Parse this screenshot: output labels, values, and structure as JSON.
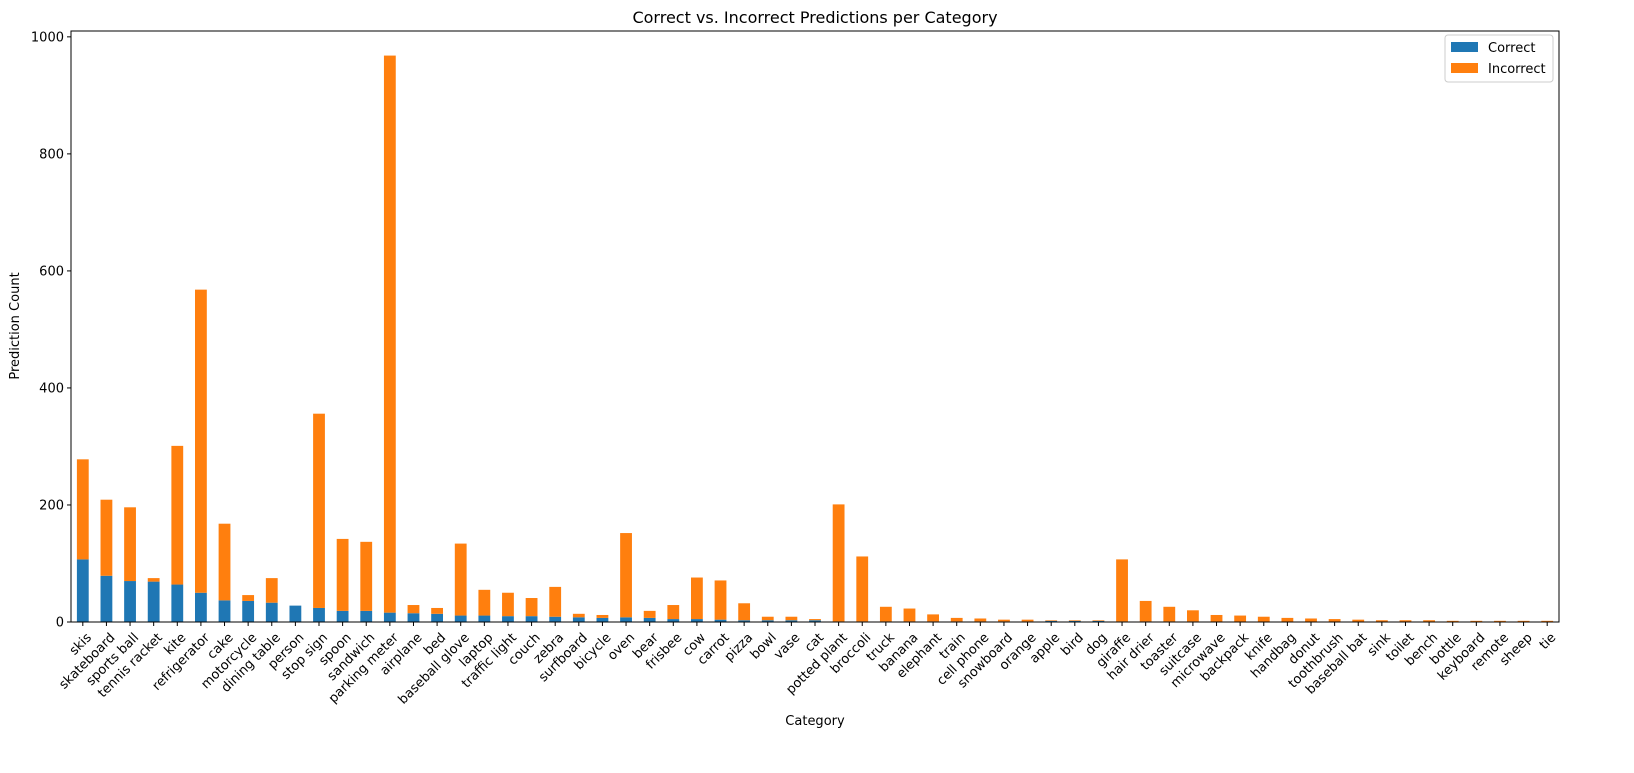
{
  "chart_data": {
    "type": "bar",
    "stacked": true,
    "title": "Correct vs. Incorrect Predictions per Category",
    "xlabel": "Category",
    "ylabel": "Prediction Count",
    "ylim": [
      0,
      1010
    ],
    "yticks": [
      0,
      200,
      400,
      600,
      800,
      1000
    ],
    "grid": false,
    "legend_position": "top-right",
    "categories": [
      "skis",
      "skateboard",
      "sports ball",
      "tennis racket",
      "kite",
      "refrigerator",
      "cake",
      "motorcycle",
      "dining table",
      "person",
      "stop sign",
      "spoon",
      "sandwich",
      "parking meter",
      "airplane",
      "bed",
      "baseball glove",
      "laptop",
      "traffic light",
      "couch",
      "zebra",
      "surfboard",
      "bicycle",
      "oven",
      "bear",
      "frisbee",
      "cow",
      "carrot",
      "pizza",
      "bowl",
      "vase",
      "cat",
      "potted plant",
      "broccoli",
      "truck",
      "banana",
      "elephant",
      "train",
      "cell phone",
      "snowboard",
      "orange",
      "apple",
      "bird",
      "dog",
      "giraffe",
      "hair drier",
      "toaster",
      "suitcase",
      "microwave",
      "backpack",
      "knife",
      "handbag",
      "donut",
      "toothbrush",
      "baseball bat",
      "sink",
      "toilet",
      "bench",
      "bottle",
      "keyboard",
      "remote",
      "sheep",
      "tie"
    ],
    "series": [
      {
        "name": "Correct",
        "color": "#1f77b4",
        "values": [
          107,
          79,
          70,
          69,
          64,
          50,
          37,
          36,
          33,
          28,
          24,
          19,
          19,
          16,
          15,
          14,
          11,
          11,
          10,
          10,
          9,
          8,
          7,
          8,
          7,
          5,
          5,
          4,
          3,
          3,
          3,
          3,
          1,
          1,
          1,
          1,
          1,
          1,
          1,
          1,
          1,
          2,
          2,
          2,
          1,
          1,
          1,
          1,
          0,
          0,
          0,
          0,
          0,
          0,
          0,
          0,
          0,
          0,
          0,
          0,
          0,
          0,
          0
        ]
      },
      {
        "name": "Incorrect",
        "color": "#ff7f0e",
        "values": [
          171,
          130,
          126,
          6,
          237,
          518,
          131,
          10,
          42,
          0,
          332,
          123,
          118,
          952,
          14,
          10,
          123,
          44,
          40,
          31,
          51,
          6,
          5,
          144,
          12,
          24,
          71,
          67,
          29,
          6,
          6,
          2,
          200,
          111,
          25,
          22,
          12,
          6,
          5,
          3,
          3,
          1,
          1,
          1,
          106,
          35,
          25,
          19,
          12,
          11,
          9,
          7,
          6,
          5,
          4,
          3,
          3,
          3,
          2,
          2,
          2,
          2,
          2
        ]
      }
    ]
  }
}
